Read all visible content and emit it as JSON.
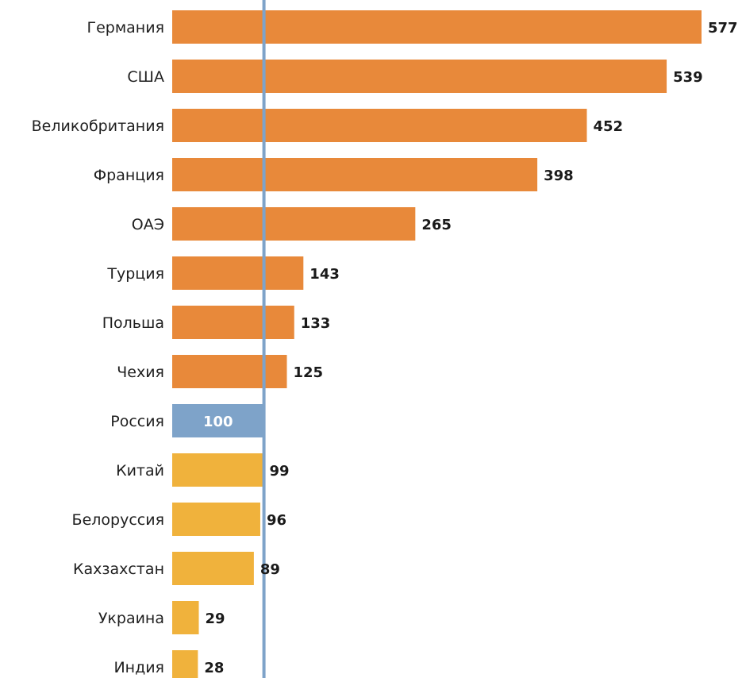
{
  "chart_data": {
    "type": "bar",
    "orientation": "horizontal",
    "categories": [
      "Германия",
      "США",
      "Великобритания",
      "Франция",
      "ОАЭ",
      "Турция",
      "Польша",
      "Чехия",
      "Россия",
      "Китай",
      "Белоруссия",
      "Кахзахстан",
      "Украина",
      "Индия"
    ],
    "values": [
      577,
      539,
      452,
      398,
      265,
      143,
      133,
      125,
      100,
      99,
      96,
      89,
      29,
      28
    ],
    "value_labels": [
      "577",
      "539",
      "452",
      "398",
      "265",
      "143",
      "133",
      "125",
      "100",
      "99",
      "96",
      "89",
      "29",
      "28"
    ],
    "reference_value": 100,
    "reference_line": true,
    "highlight_category": "Россия",
    "xlim": [
      0,
      577
    ],
    "grid": false,
    "legend": "none",
    "colors": {
      "above_reference": "#E8893A",
      "reference": "#7EA3C9",
      "below_reference": "#F0B23C",
      "reference_line": "#7EA3C9"
    }
  }
}
